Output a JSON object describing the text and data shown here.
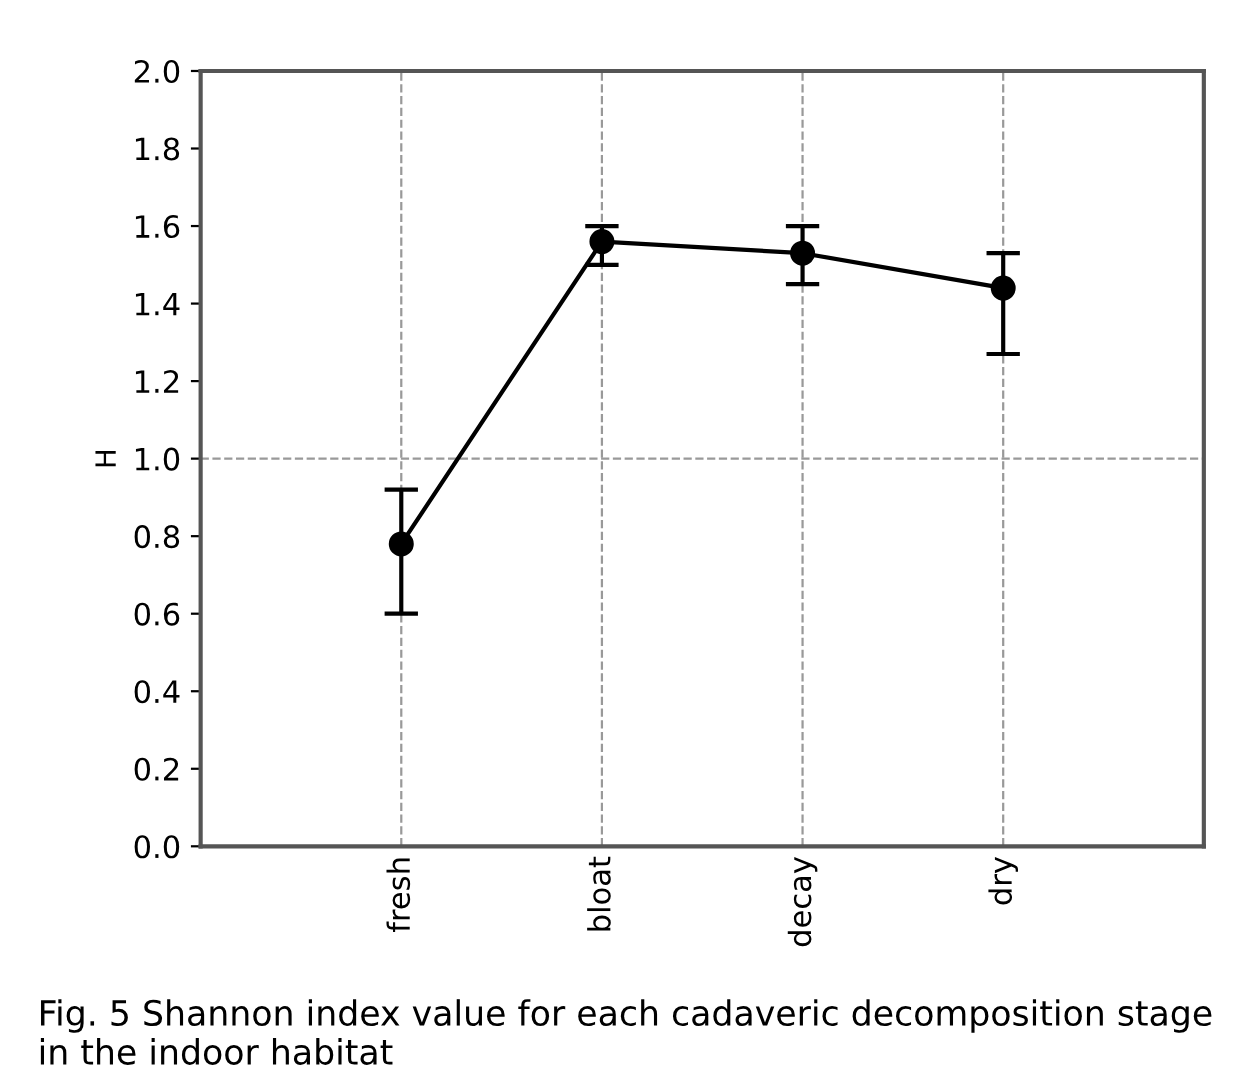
{
  "chart_data": {
    "type": "line",
    "categories": [
      "fresh",
      "bloat",
      "decay",
      "dry"
    ],
    "values": [
      0.78,
      1.56,
      1.53,
      1.44
    ],
    "errors": [
      [
        0.6,
        0.92
      ],
      [
        1.5,
        1.6
      ],
      [
        1.45,
        1.6
      ],
      [
        1.27,
        1.53
      ]
    ],
    "color": "#000000",
    "marker": "circle",
    "ylabel": "H",
    "ylim": [
      0,
      2
    ],
    "yticks": [
      {
        "value": 0,
        "label": "0.0"
      },
      0.2,
      0.4,
      0.6,
      0.8,
      {
        "value": 1,
        "label": "1.0"
      },
      1.2,
      1.4,
      1.6,
      1.8,
      {
        "value": 2,
        "label": "2.0"
      }
    ],
    "grid": "x",
    "ref_lines": [
      {
        "axis": "y",
        "value": 1,
        "line_style": "dashed",
        "color": "#999999"
      }
    ],
    "annotations": [
      "Fig. 5 Shannon index value for each cadaveric decomposition stage in the indoor habitat"
    ]
  }
}
